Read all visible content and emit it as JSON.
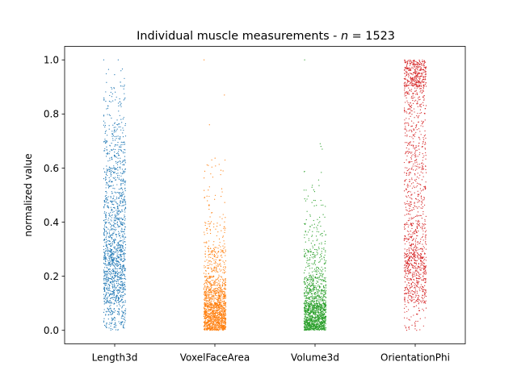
{
  "chart_data": {
    "type": "scatter",
    "subtype": "strip",
    "title_prefix": "Individual muscle measurements - ",
    "title_math_var": "n",
    "title_math_eq": " = 1523",
    "xlabel": "",
    "ylabel": "normalized value",
    "categories": [
      "Length3d",
      "VoxelFaceArea",
      "Volume3d",
      "OrientationPhi"
    ],
    "ylim": [
      -0.05,
      1.05
    ],
    "yticks": [
      0.0,
      0.2,
      0.4,
      0.6,
      0.8,
      1.0
    ],
    "ytick_labels": [
      "0.0",
      "0.2",
      "0.4",
      "0.6",
      "0.8",
      "1.0"
    ],
    "grid": false,
    "n_points_per_series": 1523,
    "series": [
      {
        "category": "Length3d",
        "color": "#1f77b4",
        "distribution": [
          {
            "range": [
              0.0,
              0.1
            ],
            "fraction": 0.09
          },
          {
            "range": [
              0.1,
              0.2
            ],
            "fraction": 0.19
          },
          {
            "range": [
              0.2,
              0.3
            ],
            "fraction": 0.22
          },
          {
            "range": [
              0.3,
              0.4
            ],
            "fraction": 0.14
          },
          {
            "range": [
              0.4,
              0.5
            ],
            "fraction": 0.12
          },
          {
            "range": [
              0.5,
              0.6
            ],
            "fraction": 0.09
          },
          {
            "range": [
              0.6,
              0.7
            ],
            "fraction": 0.07
          },
          {
            "range": [
              0.7,
              0.8
            ],
            "fraction": 0.045
          },
          {
            "range": [
              0.8,
              0.9
            ],
            "fraction": 0.025
          },
          {
            "range": [
              0.9,
              0.97
            ],
            "fraction": 0.008
          }
        ],
        "outliers": [
          1.0,
          1.0
        ]
      },
      {
        "category": "VoxelFaceArea",
        "color": "#ff7f0e",
        "distribution": [
          {
            "range": [
              0.0,
              0.05
            ],
            "fraction": 0.32
          },
          {
            "range": [
              0.05,
              0.1
            ],
            "fraction": 0.26
          },
          {
            "range": [
              0.1,
              0.15
            ],
            "fraction": 0.16
          },
          {
            "range": [
              0.15,
              0.2
            ],
            "fraction": 0.1
          },
          {
            "range": [
              0.2,
              0.3
            ],
            "fraction": 0.09
          },
          {
            "range": [
              0.3,
              0.4
            ],
            "fraction": 0.04
          },
          {
            "range": [
              0.4,
              0.5
            ],
            "fraction": 0.015
          },
          {
            "range": [
              0.5,
              0.65
            ],
            "fraction": 0.008
          }
        ],
        "outliers": [
          1.0,
          0.87,
          0.76,
          0.63,
          0.61
        ]
      },
      {
        "category": "Volume3d",
        "color": "#2ca02c",
        "distribution": [
          {
            "range": [
              0.0,
              0.05
            ],
            "fraction": 0.38
          },
          {
            "range": [
              0.05,
              0.1
            ],
            "fraction": 0.26
          },
          {
            "range": [
              0.1,
              0.15
            ],
            "fraction": 0.13
          },
          {
            "range": [
              0.15,
              0.2
            ],
            "fraction": 0.09
          },
          {
            "range": [
              0.2,
              0.3
            ],
            "fraction": 0.08
          },
          {
            "range": [
              0.3,
              0.4
            ],
            "fraction": 0.035
          },
          {
            "range": [
              0.4,
              0.5
            ],
            "fraction": 0.015
          },
          {
            "range": [
              0.5,
              0.6
            ],
            "fraction": 0.008
          }
        ],
        "outliers": [
          1.0,
          0.69,
          0.68,
          0.67
        ]
      },
      {
        "category": "OrientationPhi",
        "color": "#d62728",
        "distribution": [
          {
            "range": [
              0.0,
              0.1
            ],
            "fraction": 0.03
          },
          {
            "range": [
              0.1,
              0.2
            ],
            "fraction": 0.13
          },
          {
            "range": [
              0.2,
              0.3
            ],
            "fraction": 0.18
          },
          {
            "range": [
              0.3,
              0.4
            ],
            "fraction": 0.1
          },
          {
            "range": [
              0.4,
              0.5
            ],
            "fraction": 0.06
          },
          {
            "range": [
              0.5,
              0.6
            ],
            "fraction": 0.06
          },
          {
            "range": [
              0.6,
              0.7
            ],
            "fraction": 0.07
          },
          {
            "range": [
              0.7,
              0.8
            ],
            "fraction": 0.05
          },
          {
            "range": [
              0.8,
              0.9
            ],
            "fraction": 0.08
          },
          {
            "range": [
              0.9,
              1.0
            ],
            "fraction": 0.24
          }
        ],
        "outliers": []
      }
    ]
  }
}
